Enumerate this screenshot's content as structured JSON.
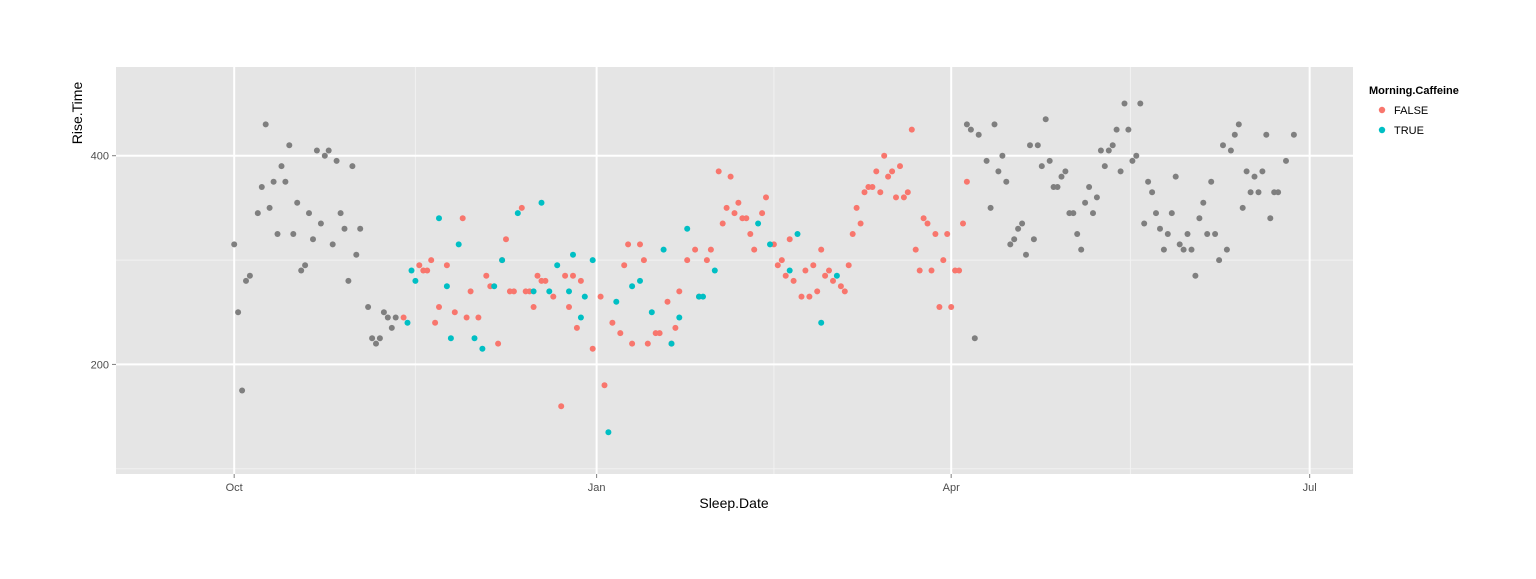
{
  "chart_data": {
    "type": "scatter",
    "title": "",
    "xlabel": "Sleep.Date",
    "ylabel": "Rise.Time",
    "x_ticks": [
      {
        "label": "Oct",
        "date": "2012-10-01"
      },
      {
        "label": "Jan",
        "date": "2013-01-01"
      },
      {
        "label": "Apr",
        "date": "2013-04-01"
      },
      {
        "label": "Jul",
        "date": "2013-07-01"
      }
    ],
    "y_ticks": [
      200,
      400
    ],
    "xlim": [
      "2012-09-01",
      "2013-07-12"
    ],
    "ylim": [
      95,
      485
    ],
    "grid": true,
    "legend": {
      "title": "Morning.Caffeine",
      "placement": "right",
      "entries": [
        {
          "label": "FALSE",
          "color": "#f8766d"
        },
        {
          "label": "TRUE",
          "color": "#00bfc4"
        }
      ]
    },
    "colors": {
      "FALSE": "#f8766d",
      "TRUE": "#00bfc4",
      "NA": "#7f7f7f",
      "panel": "#e5e5e5",
      "grid": "#ffffff"
    },
    "series": [
      {
        "group": "NA",
        "points": [
          [
            "2012-10-01",
            315
          ],
          [
            "2012-10-02",
            250
          ],
          [
            "2012-10-03",
            175
          ],
          [
            "2012-10-04",
            280
          ],
          [
            "2012-10-05",
            285
          ],
          [
            "2012-10-07",
            345
          ],
          [
            "2012-10-08",
            370
          ],
          [
            "2012-10-09",
            430
          ],
          [
            "2012-10-10",
            350
          ],
          [
            "2012-10-11",
            375
          ],
          [
            "2012-10-12",
            325
          ],
          [
            "2012-10-13",
            390
          ],
          [
            "2012-10-14",
            375
          ],
          [
            "2012-10-15",
            410
          ],
          [
            "2012-10-16",
            325
          ],
          [
            "2012-10-17",
            355
          ],
          [
            "2012-10-18",
            290
          ],
          [
            "2012-10-19",
            295
          ],
          [
            "2012-10-20",
            345
          ],
          [
            "2012-10-21",
            320
          ],
          [
            "2012-10-22",
            405
          ],
          [
            "2012-10-23",
            335
          ],
          [
            "2012-10-24",
            400
          ],
          [
            "2012-10-25",
            405
          ],
          [
            "2012-10-26",
            315
          ],
          [
            "2012-10-27",
            395
          ],
          [
            "2012-10-28",
            345
          ],
          [
            "2012-10-29",
            330
          ],
          [
            "2012-10-30",
            280
          ],
          [
            "2012-10-31",
            390
          ],
          [
            "2012-11-01",
            305
          ],
          [
            "2012-11-02",
            330
          ],
          [
            "2012-11-04",
            255
          ],
          [
            "2012-11-05",
            225
          ],
          [
            "2012-11-06",
            220
          ],
          [
            "2012-11-07",
            225
          ],
          [
            "2012-11-08",
            250
          ],
          [
            "2012-11-09",
            245
          ],
          [
            "2012-11-10",
            235
          ],
          [
            "2012-11-11",
            245
          ],
          [
            "2013-04-05",
            430
          ],
          [
            "2013-04-06",
            425
          ],
          [
            "2013-04-07",
            225
          ],
          [
            "2013-04-08",
            420
          ],
          [
            "2013-04-10",
            395
          ],
          [
            "2013-04-11",
            350
          ],
          [
            "2013-04-12",
            430
          ],
          [
            "2013-04-13",
            385
          ],
          [
            "2013-04-14",
            400
          ],
          [
            "2013-04-15",
            375
          ],
          [
            "2013-04-16",
            315
          ],
          [
            "2013-04-17",
            320
          ],
          [
            "2013-04-18",
            330
          ],
          [
            "2013-04-19",
            335
          ],
          [
            "2013-04-20",
            305
          ],
          [
            "2013-04-21",
            410
          ],
          [
            "2013-04-22",
            320
          ],
          [
            "2013-04-23",
            410
          ],
          [
            "2013-04-24",
            390
          ],
          [
            "2013-04-25",
            435
          ],
          [
            "2013-04-26",
            395
          ],
          [
            "2013-04-27",
            370
          ],
          [
            "2013-04-28",
            370
          ],
          [
            "2013-04-29",
            380
          ],
          [
            "2013-04-30",
            385
          ],
          [
            "2013-05-01",
            345
          ],
          [
            "2013-05-02",
            345
          ],
          [
            "2013-05-03",
            325
          ],
          [
            "2013-05-04",
            310
          ],
          [
            "2013-05-05",
            355
          ],
          [
            "2013-05-06",
            370
          ],
          [
            "2013-05-07",
            345
          ],
          [
            "2013-05-08",
            360
          ],
          [
            "2013-05-09",
            405
          ],
          [
            "2013-05-10",
            390
          ],
          [
            "2013-05-11",
            405
          ],
          [
            "2013-05-12",
            410
          ],
          [
            "2013-05-13",
            425
          ],
          [
            "2013-05-14",
            385
          ],
          [
            "2013-05-15",
            450
          ],
          [
            "2013-05-16",
            425
          ],
          [
            "2013-05-17",
            395
          ],
          [
            "2013-05-18",
            400
          ],
          [
            "2013-05-19",
            450
          ],
          [
            "2013-05-20",
            335
          ],
          [
            "2013-05-21",
            375
          ],
          [
            "2013-05-22",
            365
          ],
          [
            "2013-05-23",
            345
          ],
          [
            "2013-05-24",
            330
          ],
          [
            "2013-05-25",
            310
          ],
          [
            "2013-05-26",
            325
          ],
          [
            "2013-05-27",
            345
          ],
          [
            "2013-05-28",
            380
          ],
          [
            "2013-05-29",
            315
          ],
          [
            "2013-05-30",
            310
          ],
          [
            "2013-05-31",
            325
          ],
          [
            "2013-06-01",
            310
          ],
          [
            "2013-06-02",
            285
          ],
          [
            "2013-06-03",
            340
          ],
          [
            "2013-06-04",
            355
          ],
          [
            "2013-06-05",
            325
          ],
          [
            "2013-06-06",
            375
          ],
          [
            "2013-06-07",
            325
          ],
          [
            "2013-06-08",
            300
          ],
          [
            "2013-06-09",
            410
          ],
          [
            "2013-06-10",
            310
          ],
          [
            "2013-06-11",
            405
          ],
          [
            "2013-06-12",
            420
          ],
          [
            "2013-06-13",
            430
          ],
          [
            "2013-06-14",
            350
          ],
          [
            "2013-06-15",
            385
          ],
          [
            "2013-06-16",
            365
          ],
          [
            "2013-06-17",
            380
          ],
          [
            "2013-06-18",
            365
          ],
          [
            "2013-06-19",
            385
          ],
          [
            "2013-06-20",
            420
          ],
          [
            "2013-06-21",
            340
          ],
          [
            "2013-06-22",
            365
          ],
          [
            "2013-06-23",
            365
          ],
          [
            "2013-06-25",
            395
          ],
          [
            "2013-06-27",
            420
          ]
        ]
      },
      {
        "group": "FALSE",
        "points": [
          [
            "2012-11-13",
            245
          ],
          [
            "2012-11-17",
            295
          ],
          [
            "2012-11-18",
            290
          ],
          [
            "2012-11-19",
            290
          ],
          [
            "2012-11-20",
            300
          ],
          [
            "2012-11-21",
            240
          ],
          [
            "2012-11-22",
            255
          ],
          [
            "2012-11-24",
            295
          ],
          [
            "2012-11-26",
            250
          ],
          [
            "2012-11-28",
            340
          ],
          [
            "2012-11-29",
            245
          ],
          [
            "2012-11-30",
            270
          ],
          [
            "2012-12-02",
            245
          ],
          [
            "2012-12-04",
            285
          ],
          [
            "2012-12-05",
            275
          ],
          [
            "2012-12-07",
            220
          ],
          [
            "2012-12-08",
            300
          ],
          [
            "2012-12-09",
            320
          ],
          [
            "2012-12-10",
            270
          ],
          [
            "2012-12-11",
            270
          ],
          [
            "2012-12-13",
            350
          ],
          [
            "2012-12-14",
            270
          ],
          [
            "2012-12-15",
            270
          ],
          [
            "2012-12-16",
            255
          ],
          [
            "2012-12-17",
            285
          ],
          [
            "2012-12-18",
            280
          ],
          [
            "2012-12-19",
            280
          ],
          [
            "2012-12-21",
            265
          ],
          [
            "2012-12-23",
            160
          ],
          [
            "2012-12-24",
            285
          ],
          [
            "2012-12-25",
            255
          ],
          [
            "2012-12-26",
            285
          ],
          [
            "2012-12-27",
            235
          ],
          [
            "2012-12-28",
            280
          ],
          [
            "2012-12-31",
            215
          ],
          [
            "2013-01-02",
            265
          ],
          [
            "2013-01-03",
            180
          ],
          [
            "2013-01-05",
            240
          ],
          [
            "2013-01-07",
            230
          ],
          [
            "2013-01-08",
            295
          ],
          [
            "2013-01-09",
            315
          ],
          [
            "2013-01-10",
            220
          ],
          [
            "2013-01-12",
            315
          ],
          [
            "2013-01-13",
            300
          ],
          [
            "2013-01-14",
            220
          ],
          [
            "2013-01-16",
            230
          ],
          [
            "2013-01-17",
            230
          ],
          [
            "2013-01-19",
            260
          ],
          [
            "2013-01-20",
            220
          ],
          [
            "2013-01-21",
            235
          ],
          [
            "2013-01-22",
            270
          ],
          [
            "2013-01-24",
            300
          ],
          [
            "2013-01-26",
            310
          ],
          [
            "2013-01-27",
            265
          ],
          [
            "2013-01-29",
            300
          ],
          [
            "2013-01-30",
            310
          ],
          [
            "2013-02-01",
            385
          ],
          [
            "2013-02-02",
            335
          ],
          [
            "2013-02-03",
            350
          ],
          [
            "2013-02-04",
            380
          ],
          [
            "2013-02-05",
            345
          ],
          [
            "2013-02-06",
            355
          ],
          [
            "2013-02-07",
            340
          ],
          [
            "2013-02-08",
            340
          ],
          [
            "2013-02-09",
            325
          ],
          [
            "2013-02-10",
            310
          ],
          [
            "2013-02-12",
            345
          ],
          [
            "2013-02-13",
            360
          ],
          [
            "2013-02-15",
            315
          ],
          [
            "2013-02-16",
            295
          ],
          [
            "2013-02-17",
            300
          ],
          [
            "2013-02-18",
            285
          ],
          [
            "2013-02-19",
            320
          ],
          [
            "2013-02-20",
            280
          ],
          [
            "2013-02-22",
            265
          ],
          [
            "2013-02-23",
            290
          ],
          [
            "2013-02-24",
            265
          ],
          [
            "2013-02-25",
            295
          ],
          [
            "2013-02-26",
            270
          ],
          [
            "2013-02-27",
            310
          ],
          [
            "2013-02-28",
            285
          ],
          [
            "2013-03-01",
            290
          ],
          [
            "2013-03-02",
            280
          ],
          [
            "2013-03-04",
            275
          ],
          [
            "2013-03-05",
            270
          ],
          [
            "2013-03-06",
            295
          ],
          [
            "2013-03-07",
            325
          ],
          [
            "2013-03-08",
            350
          ],
          [
            "2013-03-09",
            335
          ],
          [
            "2013-03-10",
            365
          ],
          [
            "2013-03-11",
            370
          ],
          [
            "2013-03-12",
            370
          ],
          [
            "2013-03-13",
            385
          ],
          [
            "2013-03-14",
            365
          ],
          [
            "2013-03-15",
            400
          ],
          [
            "2013-03-16",
            380
          ],
          [
            "2013-03-17",
            385
          ],
          [
            "2013-03-18",
            360
          ],
          [
            "2013-03-19",
            390
          ],
          [
            "2013-03-20",
            360
          ],
          [
            "2013-03-21",
            365
          ],
          [
            "2013-03-22",
            425
          ],
          [
            "2013-03-23",
            310
          ],
          [
            "2013-03-24",
            290
          ],
          [
            "2013-03-25",
            340
          ],
          [
            "2013-03-26",
            335
          ],
          [
            "2013-03-27",
            290
          ],
          [
            "2013-03-28",
            325
          ],
          [
            "2013-03-29",
            255
          ],
          [
            "2013-03-30",
            300
          ],
          [
            "2013-03-31",
            325
          ],
          [
            "2013-04-01",
            255
          ],
          [
            "2013-04-02",
            290
          ],
          [
            "2013-04-03",
            290
          ],
          [
            "2013-04-04",
            335
          ],
          [
            "2013-04-05",
            375
          ]
        ]
      },
      {
        "group": "TRUE",
        "points": [
          [
            "2012-11-14",
            240
          ],
          [
            "2012-11-15",
            290
          ],
          [
            "2012-11-16",
            280
          ],
          [
            "2012-11-22",
            340
          ],
          [
            "2012-11-24",
            275
          ],
          [
            "2012-11-25",
            225
          ],
          [
            "2012-11-27",
            315
          ],
          [
            "2012-12-01",
            225
          ],
          [
            "2012-12-03",
            215
          ],
          [
            "2012-12-06",
            275
          ],
          [
            "2012-12-08",
            300
          ],
          [
            "2012-12-12",
            345
          ],
          [
            "2012-12-16",
            270
          ],
          [
            "2012-12-18",
            355
          ],
          [
            "2012-12-20",
            270
          ],
          [
            "2012-12-22",
            295
          ],
          [
            "2012-12-25",
            270
          ],
          [
            "2012-12-26",
            305
          ],
          [
            "2012-12-28",
            245
          ],
          [
            "2012-12-29",
            265
          ],
          [
            "2012-12-31",
            300
          ],
          [
            "2013-01-04",
            135
          ],
          [
            "2013-01-06",
            260
          ],
          [
            "2013-01-10",
            275
          ],
          [
            "2013-01-12",
            280
          ],
          [
            "2013-01-15",
            250
          ],
          [
            "2013-01-18",
            310
          ],
          [
            "2013-01-20",
            220
          ],
          [
            "2013-01-22",
            245
          ],
          [
            "2013-01-24",
            330
          ],
          [
            "2013-01-27",
            265
          ],
          [
            "2013-01-28",
            265
          ],
          [
            "2013-01-31",
            290
          ],
          [
            "2013-02-11",
            335
          ],
          [
            "2013-02-14",
            315
          ],
          [
            "2013-02-19",
            290
          ],
          [
            "2013-02-21",
            325
          ],
          [
            "2013-02-27",
            240
          ],
          [
            "2013-03-03",
            285
          ]
        ]
      }
    ]
  }
}
